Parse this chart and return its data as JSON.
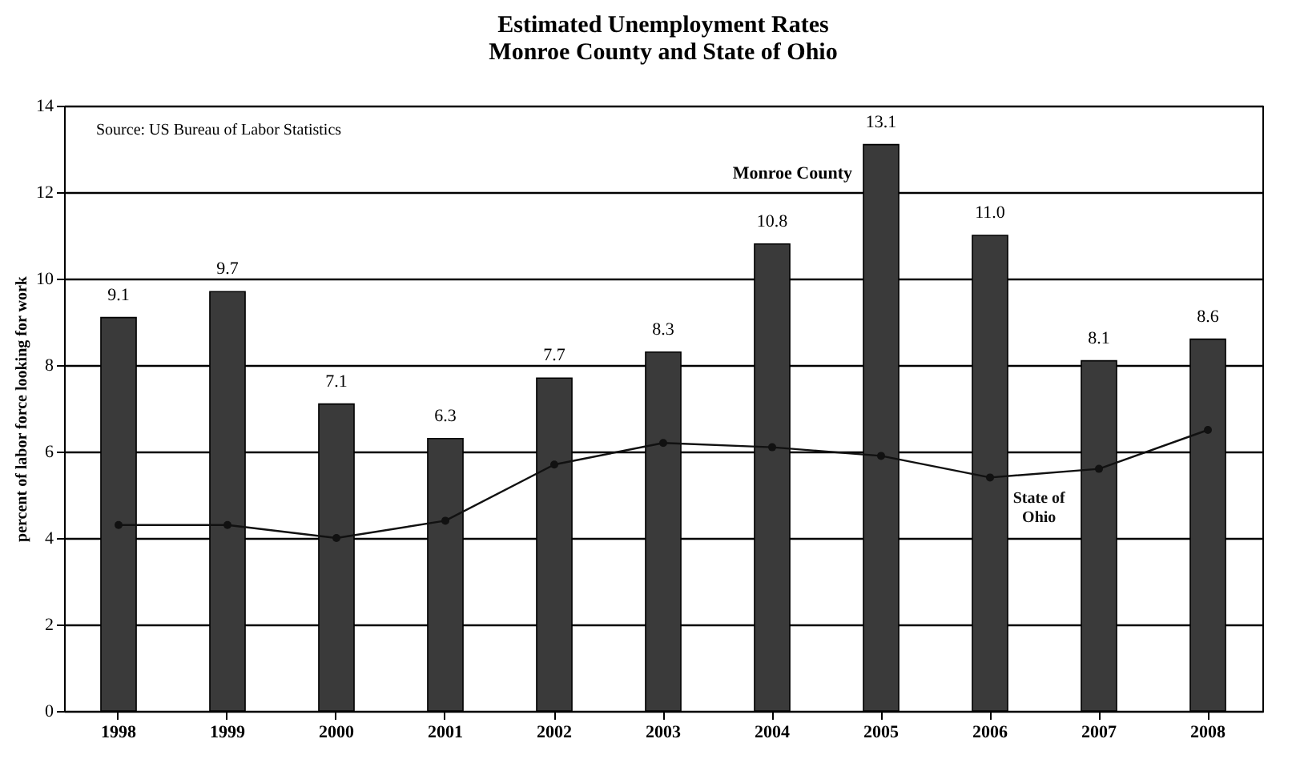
{
  "chart_data": {
    "type": "bar",
    "title": "Estimated Unemployment Rates",
    "subtitle": "Monroe County and State of Ohio",
    "ylabel": "percent of labor force looking for work",
    "annotations": [
      "Source: US Bureau of Labor Statistics"
    ],
    "categories": [
      "1998",
      "1999",
      "2000",
      "2001",
      "2002",
      "2003",
      "2004",
      "2005",
      "2006",
      "2007",
      "2008"
    ],
    "series": [
      {
        "name": "Monroe County",
        "color": "#3a3a3a",
        "values": [
          9.1,
          9.7,
          7.1,
          6.3,
          7.7,
          8.3,
          10.8,
          13.1,
          11.0,
          8.1,
          8.6
        ],
        "value_labels": [
          "9.1",
          "9.7",
          "7.1",
          "6.3",
          "7.7",
          "8.3",
          "10.8",
          "13.1",
          "11.0",
          "8.1",
          "8.6"
        ]
      },
      {
        "name": "State of Ohio",
        "type": "line",
        "color": "#111111",
        "marker": "circle",
        "values": [
          4.3,
          4.3,
          4.0,
          4.4,
          5.7,
          6.2,
          6.1,
          5.9,
          5.4,
          5.6,
          6.5
        ]
      }
    ],
    "ylim": [
      0,
      14
    ],
    "yticks": [
      0,
      2,
      4,
      6,
      8,
      10,
      12,
      14
    ],
    "grid": "y"
  }
}
